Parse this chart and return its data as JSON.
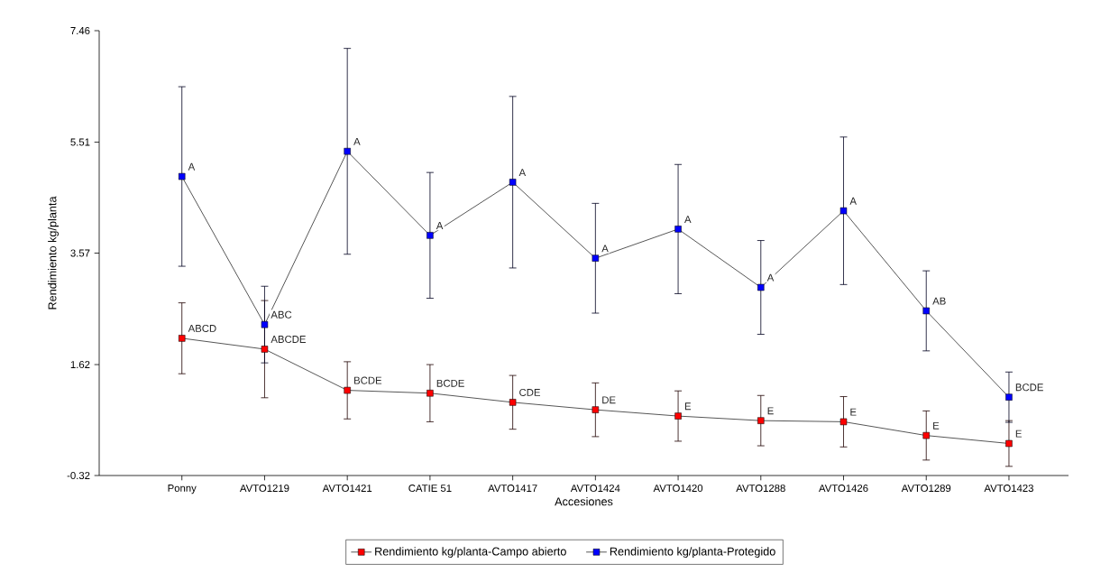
{
  "chart_data": {
    "type": "line",
    "xlabel": "Accesiones",
    "ylabel": "Rendimiento kg/planta",
    "categories": [
      "Ponny",
      "AVTO1219",
      "AVTO1421",
      "CATIE 51",
      "AVTO1417",
      "AVTO1424",
      "AVTO1420",
      "AVTO1288",
      "AVTO1426",
      "AVTO1289",
      "AVTO1423"
    ],
    "series": [
      {
        "name": "Rendimiento kg/planta-Campo abierto",
        "color": "#ff0000",
        "values": [
          2.08,
          1.89,
          1.17,
          1.12,
          0.96,
          0.83,
          0.72,
          0.64,
          0.62,
          0.38,
          0.24
        ],
        "errors": [
          0.62,
          0.85,
          0.5,
          0.5,
          0.47,
          0.47,
          0.44,
          0.44,
          0.44,
          0.43,
          0.4
        ]
      },
      {
        "name": "Rendimiento kg/planta-Protegido",
        "color": "#0000ff",
        "values": [
          4.91,
          2.32,
          5.35,
          3.88,
          4.81,
          3.48,
          3.99,
          2.97,
          4.31,
          2.56,
          1.05
        ],
        "errors": [
          1.57,
          0.67,
          1.8,
          1.1,
          1.5,
          0.96,
          1.13,
          0.82,
          1.29,
          0.7,
          0.44
        ]
      }
    ],
    "ylim": [
      -0.32,
      7.46
    ],
    "yticks": [
      -0.32,
      1.62,
      3.57,
      5.51,
      7.46
    ],
    "grid": false,
    "legend": "bottom",
    "marker": "square",
    "line_style": "solid",
    "annotations": [
      {
        "text": "ABCD",
        "x": "Ponny",
        "y": 2.08
      },
      {
        "text": "ABCDE",
        "x": "AVTO1219",
        "y": 1.89
      },
      {
        "text": "BCDE",
        "x": "AVTO1421",
        "y": 1.17
      },
      {
        "text": "BCDE",
        "x": "CATIE 51",
        "y": 1.12
      },
      {
        "text": "CDE",
        "x": "AVTO1417",
        "y": 0.96
      },
      {
        "text": "DE",
        "x": "AVTO1424",
        "y": 0.83
      },
      {
        "text": "E",
        "x": "AVTO1420",
        "y": 0.72
      },
      {
        "text": "E",
        "x": "AVTO1288",
        "y": 0.64
      },
      {
        "text": "E",
        "x": "AVTO1426",
        "y": 0.62
      },
      {
        "text": "E",
        "x": "AVTO1289",
        "y": 0.38
      },
      {
        "text": "E",
        "x": "AVTO1423",
        "y": 0.24
      },
      {
        "text": "A",
        "x": "Ponny",
        "y": 4.91
      },
      {
        "text": "ABC",
        "x": "AVTO1219",
        "y": 2.32
      },
      {
        "text": "A",
        "x": "AVTO1421",
        "y": 5.35
      },
      {
        "text": "A",
        "x": "CATIE 51",
        "y": 3.88
      },
      {
        "text": "A",
        "x": "AVTO1417",
        "y": 4.81
      },
      {
        "text": "A",
        "x": "AVTO1424",
        "y": 3.48
      },
      {
        "text": "A",
        "x": "AVTO1420",
        "y": 3.99
      },
      {
        "text": "A",
        "x": "AVTO1288",
        "y": 2.97
      },
      {
        "text": "A",
        "x": "AVTO1426",
        "y": 4.31
      },
      {
        "text": "AB",
        "x": "AVTO1289",
        "y": 2.56
      },
      {
        "text": "BCDE",
        "x": "AVTO1423",
        "y": 1.05
      }
    ]
  }
}
